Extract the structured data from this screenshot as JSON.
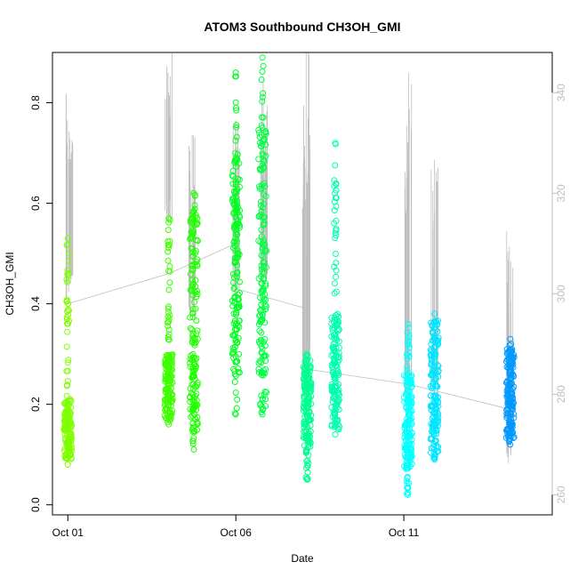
{
  "chart_data": {
    "type": "scatter",
    "title": "ATOM3 Southbound CH3OH_GMI",
    "xlabel": "Date",
    "ylabel": "CH3OH_GMI",
    "x_ticks": [
      {
        "value": "2017-10-01",
        "label": "Oct 01"
      },
      {
        "value": "2017-10-06",
        "label": "Oct 06"
      },
      {
        "value": "2017-10-11",
        "label": "Oct 11"
      }
    ],
    "xlim": [
      "2017-09-30T13:00",
      "2017-10-15T10:00"
    ],
    "ylim": [
      -0.02,
      0.9
    ],
    "y_ticks": [
      0.0,
      0.2,
      0.4,
      0.6,
      0.8
    ],
    "y2lim": [
      256,
      348
    ],
    "y2_ticks": [
      260,
      280,
      300,
      320,
      340
    ],
    "y2_color": "#bebebe",
    "grid": false,
    "legend": "none",
    "series": [
      {
        "x": "2017-10-01T00:00",
        "y_range": [
          0.08,
          0.53
        ],
        "dense_range": [
          0.09,
          0.21
        ],
        "color": "#7FFF00"
      },
      {
        "x": "2017-10-04T00:00",
        "y_range": [
          0.16,
          0.57
        ],
        "dense_range": [
          0.17,
          0.3
        ],
        "color": "#3FFF00"
      },
      {
        "x": "2017-10-04T18:00",
        "y_range": [
          0.11,
          0.62
        ],
        "dense_range": [
          0.12,
          0.58
        ],
        "color": "#1FFF00"
      },
      {
        "x": "2017-10-06T00:00",
        "y_range": [
          0.18,
          0.86
        ],
        "dense_range": [
          0.26,
          0.7
        ],
        "color": "#00FF20"
      },
      {
        "x": "2017-10-06T19:00",
        "y_range": [
          0.18,
          0.89
        ],
        "dense_range": [
          0.19,
          0.75
        ],
        "color": "#00FF40"
      },
      {
        "x": "2017-10-08T03:00",
        "y_range": [
          0.05,
          0.3
        ],
        "dense_range": [
          0.11,
          0.29
        ],
        "color": "#00FF90"
      },
      {
        "x": "2017-10-08T23:00",
        "y_range": [
          0.14,
          0.72
        ],
        "dense_range": [
          0.15,
          0.38
        ],
        "color": "#00FFB0"
      },
      {
        "x": "2017-10-11T03:00",
        "y_range": [
          0.02,
          0.36
        ],
        "dense_range": [
          0.07,
          0.26
        ],
        "color": "#00FFFF"
      },
      {
        "x": "2017-10-11T22:00",
        "y_range": [
          0.09,
          0.38
        ],
        "dense_range": [
          0.1,
          0.37
        ],
        "color": "#00E5FF"
      },
      {
        "x": "2017-10-14T04:00",
        "y_range": [
          0.12,
          0.33
        ],
        "dense_range": [
          0.13,
          0.31
        ],
        "color": "#0099FF"
      }
    ],
    "secondary_line": {
      "color": "#bebebe",
      "path": [
        [
          "2017-10-01T00:00",
          298
        ],
        [
          "2017-10-04T00:00",
          304
        ],
        [
          "2017-10-06T00:00",
          310
        ],
        [
          "2017-10-06T00:00",
          301
        ],
        [
          "2017-10-08T03:00",
          297
        ],
        [
          "2017-10-08T03:00",
          285
        ],
        [
          "2017-10-11T03:00",
          282
        ],
        [
          "2017-10-14T04:00",
          277
        ]
      ],
      "spikes": [
        {
          "x": "2017-10-01T01:00",
          "top": 341,
          "base": 305
        },
        {
          "x": "2017-10-04T00:00",
          "top": 349,
          "base": 320
        },
        {
          "x": "2017-10-04T17:00",
          "top": 334,
          "base": 300
        },
        {
          "x": "2017-10-06T00:00",
          "top": 335,
          "base": 305
        },
        {
          "x": "2017-10-06T20:00",
          "top": 345,
          "base": 305
        },
        {
          "x": "2017-10-08T02:00",
          "top": 328,
          "base": 285
        },
        {
          "x": "2017-10-08T03:00",
          "top": 350,
          "base": 290
        },
        {
          "x": "2017-10-11T03:00",
          "top": 347,
          "base": 283
        },
        {
          "x": "2017-10-11T22:00",
          "top": 330,
          "base": 285
        },
        {
          "x": "2017-10-14T04:00",
          "top": 313,
          "base": 272
        }
      ]
    }
  }
}
